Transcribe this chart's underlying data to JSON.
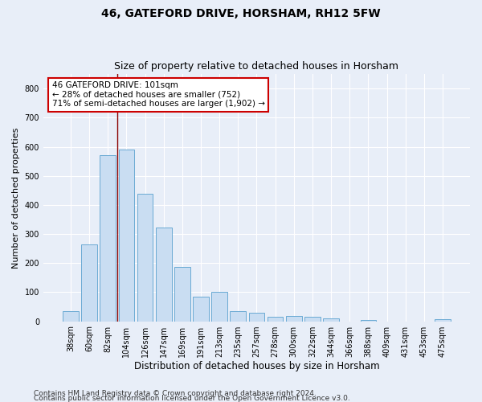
{
  "title1": "46, GATEFORD DRIVE, HORSHAM, RH12 5FW",
  "title2": "Size of property relative to detached houses in Horsham",
  "xlabel": "Distribution of detached houses by size in Horsham",
  "ylabel": "Number of detached properties",
  "footer1": "Contains HM Land Registry data © Crown copyright and database right 2024.",
  "footer2": "Contains public sector information licensed under the Open Government Licence v3.0.",
  "categories": [
    "38sqm",
    "60sqm",
    "82sqm",
    "104sqm",
    "126sqm",
    "147sqm",
    "169sqm",
    "191sqm",
    "213sqm",
    "235sqm",
    "257sqm",
    "278sqm",
    "300sqm",
    "322sqm",
    "344sqm",
    "366sqm",
    "388sqm",
    "409sqm",
    "431sqm",
    "453sqm",
    "475sqm"
  ],
  "values": [
    35,
    265,
    570,
    590,
    438,
    323,
    188,
    84,
    100,
    35,
    30,
    15,
    17,
    15,
    10,
    0,
    5,
    0,
    0,
    0,
    7
  ],
  "bar_color": "#c9ddf2",
  "bar_edge_color": "#6aaad4",
  "vline_x_index": 3,
  "vline_color": "#8b0000",
  "annotation_line1": "46 GATEFORD DRIVE: 101sqm",
  "annotation_line2": "← 28% of detached houses are smaller (752)",
  "annotation_line3": "71% of semi-detached houses are larger (1,902) →",
  "annotation_box_color": "#ffffff",
  "annotation_box_edge": "#cc0000",
  "ylim": [
    0,
    850
  ],
  "yticks": [
    0,
    100,
    200,
    300,
    400,
    500,
    600,
    700,
    800
  ],
  "bg_color": "#e8eef8",
  "plot_bg_color": "#e8eef8",
  "grid_color": "#ffffff",
  "title1_fontsize": 10,
  "title2_fontsize": 9,
  "xlabel_fontsize": 8.5,
  "ylabel_fontsize": 8,
  "tick_fontsize": 7,
  "footer_fontsize": 6.5,
  "annotation_fontsize": 7.5
}
